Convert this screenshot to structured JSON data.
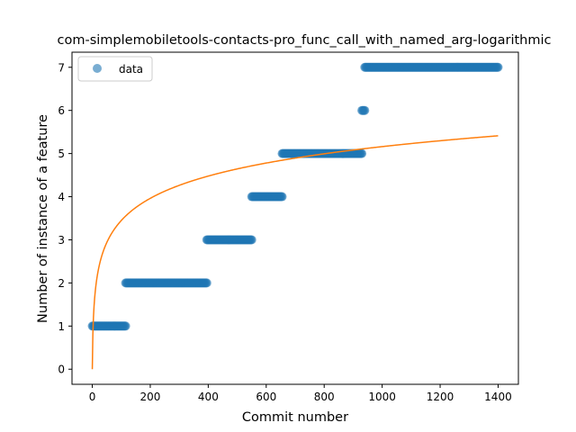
{
  "chart_data": {
    "type": "scatter",
    "title": "com-simplemobiletools-contacts-pro_func_call_with_named_arg-logarithmic",
    "xlabel": "Commit number",
    "ylabel": "Number of instance of a feature",
    "xlim": [
      -70,
      1470
    ],
    "ylim": [
      -0.35,
      7.35
    ],
    "xticks": [
      0,
      200,
      400,
      600,
      800,
      1000,
      1200,
      1400
    ],
    "yticks": [
      0,
      1,
      2,
      3,
      4,
      5,
      6,
      7
    ],
    "grid": false,
    "legend": {
      "position": "top-left",
      "entries": [
        "data"
      ]
    },
    "series": [
      {
        "name": "data",
        "kind": "scatter",
        "color": "#1f77b4",
        "segments": [
          {
            "x_start": 0,
            "x_end": 115,
            "y": 1
          },
          {
            "x_start": 115,
            "x_end": 395,
            "y": 2
          },
          {
            "x_start": 395,
            "x_end": 550,
            "y": 3
          },
          {
            "x_start": 550,
            "x_end": 655,
            "y": 4
          },
          {
            "x_start": 655,
            "x_end": 930,
            "y": 5
          },
          {
            "x_start": 930,
            "x_end": 940,
            "y": 6
          },
          {
            "x_start": 940,
            "x_end": 1400,
            "y": 7
          }
        ]
      },
      {
        "kind": "line",
        "color": "#ff7f0e",
        "fit": {
          "model": "logarithmic",
          "a": 0.747,
          "b": 0.0,
          "x_start": 0,
          "x_end": 1400
        }
      }
    ]
  }
}
